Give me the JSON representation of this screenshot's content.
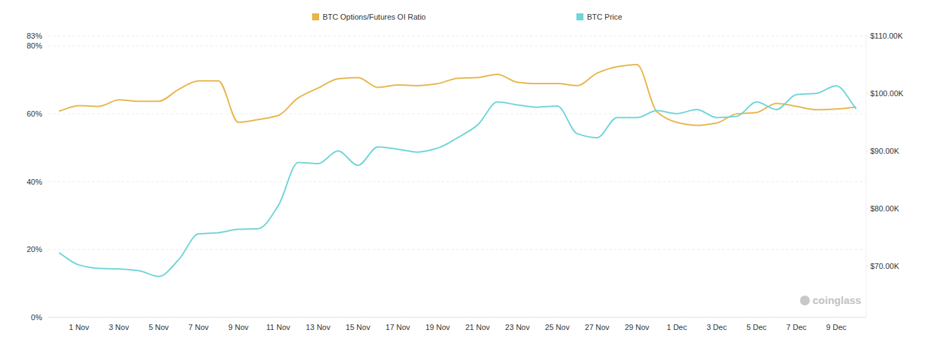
{
  "chart_data": {
    "type": "line",
    "categories": [
      null,
      "1 Nov",
      null,
      "3 Nov",
      null,
      "5 Nov",
      null,
      "7 Nov",
      null,
      "9 Nov",
      null,
      "11 Nov",
      null,
      "13 Nov",
      null,
      "15 Nov",
      null,
      "17 Nov",
      null,
      "19 Nov",
      null,
      "21 Nov",
      null,
      "23 Nov",
      null,
      "25 Nov",
      null,
      "27 Nov",
      null,
      "29 Nov",
      null,
      "1 Dec",
      null,
      "3 Dec",
      null,
      "5 Dec",
      null,
      "7 Dec",
      null,
      "9 Dec",
      null
    ],
    "series": [
      {
        "name": "BTC Options/Futures OI Ratio",
        "color": "#e8b54b",
        "values": [
          60.8,
          62.4,
          62.2,
          64.1,
          63.7,
          63.7,
          67.2,
          69.7,
          69.7,
          57.5,
          58.3,
          59.5,
          64.7,
          67.6,
          70.3,
          70.7,
          67.8,
          68.5,
          68.3,
          68.9,
          70.5,
          70.7,
          71.6,
          69.3,
          68.9,
          68.9,
          68.3,
          72.0,
          73.9,
          74.5,
          60.6,
          57.5,
          56.6,
          57.3,
          60.0,
          60.4,
          63.1,
          62.2,
          61.2,
          61.4,
          62.0
        ]
      },
      {
        "name": "BTC Price",
        "color": "#6fd5d8",
        "axis": "y2",
        "values": [
          72300,
          70200,
          69600,
          69500,
          69200,
          68200,
          71100,
          75600,
          75800,
          76400,
          76500,
          80500,
          88000,
          87800,
          90000,
          87500,
          90700,
          90300,
          89800,
          90500,
          92300,
          94500,
          98500,
          98000,
          97600,
          97800,
          93000,
          92300,
          95800,
          95800,
          97000,
          96500,
          97200,
          95800,
          96000,
          98500,
          97200,
          99800,
          100000,
          101300,
          97300
        ]
      }
    ],
    "ylim": [
      0,
      83
    ],
    "yticks": [
      {
        "value": 0,
        "label": "0%"
      },
      {
        "value": 20,
        "label": "20%"
      },
      {
        "value": 40,
        "label": "40%"
      },
      {
        "value": 60,
        "label": "60%"
      },
      {
        "value": 80,
        "label": "80%"
      },
      {
        "value": 83,
        "label": "83%"
      }
    ],
    "y2lim": [
      61100,
      110000
    ],
    "y2ticks": [
      {
        "value": 70000,
        "label": "$70.00K"
      },
      {
        "value": 80000,
        "label": "$80.00K"
      },
      {
        "value": 90000,
        "label": "$90.00K"
      },
      {
        "value": 100000,
        "label": "$100.00K"
      },
      {
        "value": 110000,
        "label": "$110.00K"
      }
    ],
    "grid": true,
    "legend": "top",
    "annotations": [
      "coinglass"
    ]
  }
}
